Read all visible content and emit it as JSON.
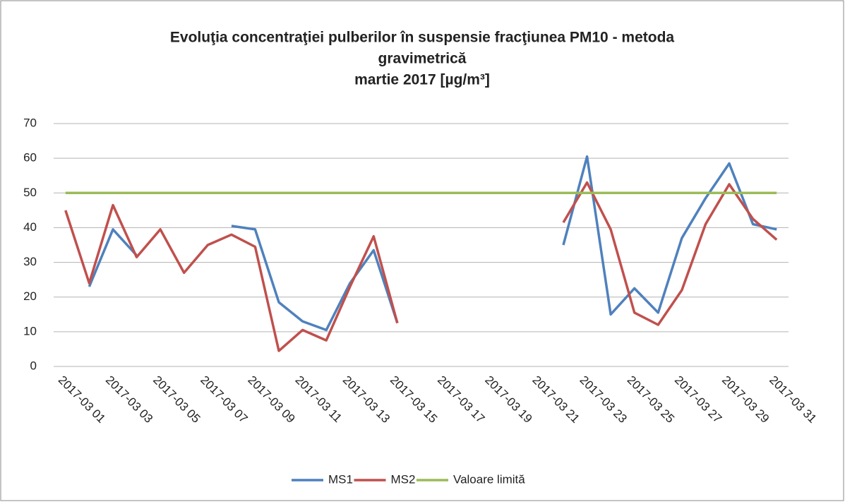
{
  "chart_data": {
    "type": "line",
    "title": [
      "Evoluţia concentraţiei pulberilor în suspensie fracţiunea PM10 - metoda",
      "gravimetrică",
      "martie 2017 [µg/m³]"
    ],
    "categories": [
      "2017-03 01",
      null,
      "2017-03 03",
      null,
      "2017-03 05",
      null,
      "2017-03 07",
      null,
      "2017-03 09",
      null,
      "2017-03 11",
      null,
      "2017-03 13",
      null,
      "2017-03 15",
      null,
      "2017-03 17",
      null,
      "2017-03 19",
      null,
      "2017-03 21",
      null,
      "2017-03 23",
      null,
      "2017-03 25",
      null,
      "2017-03 27",
      null,
      "2017-03 29",
      null,
      "2017-03 31"
    ],
    "series": [
      {
        "name": "MS1",
        "color": "#4f81bd",
        "values": [
          null,
          23,
          39.5,
          32,
          null,
          null,
          null,
          40.5,
          39.5,
          18.5,
          13,
          10.5,
          24,
          33.5,
          12.5,
          null,
          null,
          null,
          null,
          null,
          null,
          35,
          60.5,
          15,
          22.5,
          15.5,
          37,
          48.5,
          58.5,
          41,
          39.5
        ]
      },
      {
        "name": "MS2",
        "color": "#c0504d",
        "values": [
          45,
          24,
          46.5,
          31.5,
          39.5,
          27,
          35,
          38,
          34.5,
          4.5,
          10.5,
          7.5,
          23,
          37.5,
          12.5,
          null,
          null,
          null,
          null,
          null,
          null,
          41.5,
          53,
          39.5,
          15.5,
          12,
          22,
          41,
          52.5,
          42.5,
          36.5
        ]
      },
      {
        "name": "Valoare limită",
        "color": "#9bbb59",
        "values": [
          50,
          50,
          50,
          50,
          50,
          50,
          50,
          50,
          50,
          50,
          50,
          50,
          50,
          50,
          50,
          50,
          50,
          50,
          50,
          50,
          50,
          50,
          50,
          50,
          50,
          50,
          50,
          50,
          50,
          50,
          50
        ]
      }
    ],
    "ylim": [
      0,
      70
    ],
    "yticks": [
      0,
      10,
      20,
      30,
      40,
      50,
      60,
      70
    ],
    "grid": true,
    "legend": "bottom"
  }
}
